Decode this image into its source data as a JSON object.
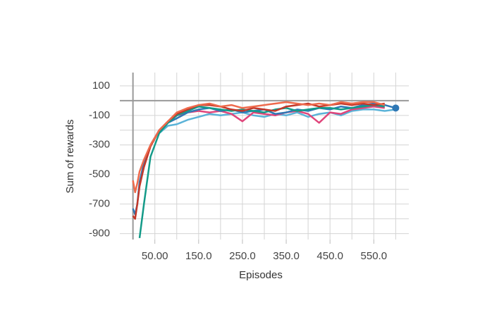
{
  "chart_data": {
    "type": "line",
    "x_label": "Episodes",
    "y_label": "Sum of rewards",
    "xlim": [
      -30,
      630
    ],
    "ylim": [
      -940,
      190
    ],
    "xticks": [
      {
        "value": 50,
        "label": "50.00"
      },
      {
        "value": 150,
        "label": "150.0"
      },
      {
        "value": 250,
        "label": "250.0"
      },
      {
        "value": 350,
        "label": "350.0"
      },
      {
        "value": 450,
        "label": "450.0"
      },
      {
        "value": 550,
        "label": "550.0"
      }
    ],
    "yticks": [
      100,
      -100,
      -300,
      -500,
      -700,
      -900
    ],
    "xminorticks": [
      0,
      100,
      200,
      300,
      400,
      500,
      600
    ],
    "yminorticks": [
      0,
      -200,
      -400,
      -600,
      -800
    ],
    "grid": true,
    "zero_lines": true,
    "x": [
      0,
      5,
      10,
      15,
      25,
      40,
      60,
      80,
      100,
      125,
      150,
      175,
      200,
      225,
      250,
      275,
      300,
      325,
      350,
      375,
      400,
      425,
      450,
      475,
      500,
      525,
      550,
      575,
      600
    ],
    "series": [
      {
        "color": "#5bb3d8",
        "values": [
          null,
          null,
          null,
          null,
          null,
          null,
          -220,
          -170,
          -160,
          -130,
          -110,
          -90,
          -100,
          -90,
          -80,
          -100,
          -110,
          -90,
          -100,
          -80,
          -110,
          -90,
          -80,
          -100,
          -70,
          -60,
          -60,
          -70,
          -60
        ]
      },
      {
        "color": "#e0457b",
        "values": [
          null,
          null,
          null,
          null,
          null,
          null,
          -210,
          -150,
          -100,
          -80,
          -70,
          -80,
          -70,
          -90,
          -140,
          -80,
          -90,
          -100,
          -80,
          -70,
          -90,
          -150,
          -80,
          -90,
          -60,
          -50,
          -40,
          -50,
          null
        ]
      },
      {
        "color": "#2f78b5",
        "marker_last": true,
        "values": [
          -730,
          -770,
          -700,
          -550,
          -420,
          -300,
          -200,
          -150,
          -120,
          -80,
          -60,
          -50,
          -70,
          -60,
          -80,
          -70,
          -60,
          -90,
          -80,
          -60,
          -70,
          -50,
          -60,
          -40,
          -50,
          -30,
          -20,
          -30,
          -50
        ]
      },
      {
        "color": "#139a88",
        "values": [
          null,
          null,
          null,
          -930,
          -700,
          -380,
          -220,
          -150,
          -100,
          -70,
          -40,
          -50,
          -60,
          -70,
          -60,
          -70,
          -80,
          -60,
          -50,
          -70,
          -60,
          -50,
          -50,
          -60,
          -50,
          -40,
          -30,
          -40,
          null
        ]
      },
      {
        "color": "#c2382a",
        "values": [
          -780,
          -800,
          -700,
          -580,
          -450,
          -310,
          -200,
          -140,
          -90,
          -60,
          -30,
          -30,
          -40,
          -60,
          -70,
          -50,
          -60,
          -70,
          -40,
          -30,
          -20,
          -40,
          -30,
          -20,
          -30,
          -20,
          -30,
          -20,
          null
        ]
      },
      {
        "color": "#ee6a4c",
        "values": [
          -540,
          -620,
          -560,
          -480,
          -400,
          -300,
          -200,
          -140,
          -80,
          -50,
          -30,
          -20,
          -40,
          -30,
          -50,
          -40,
          -30,
          -20,
          -10,
          -20,
          -30,
          -20,
          -30,
          -10,
          -20,
          -10,
          -10,
          -30,
          null
        ]
      }
    ]
  }
}
